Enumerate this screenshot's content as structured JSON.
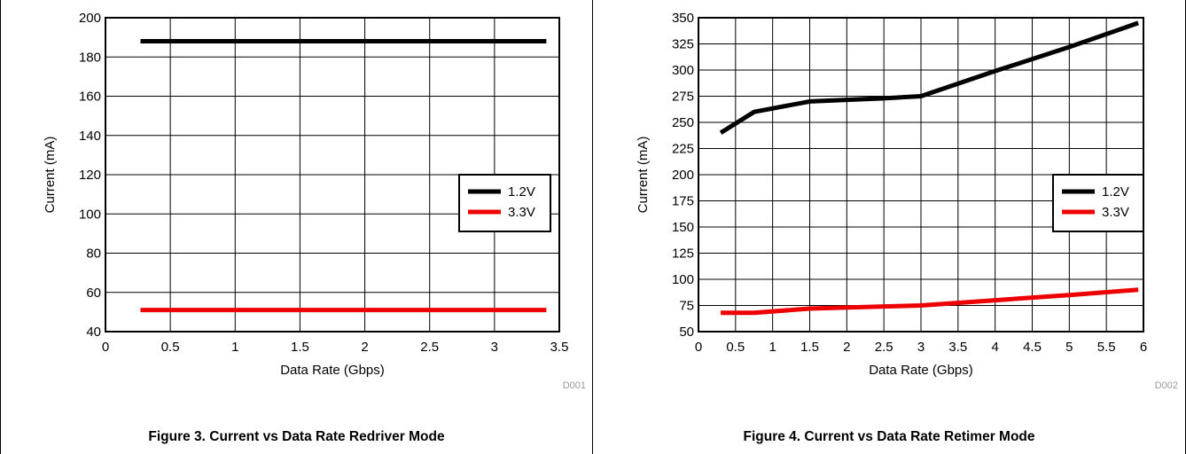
{
  "chart_data": [
    {
      "type": "line",
      "caption": "Figure 3. Current vs Data Rate Redriver Mode",
      "figure_code": "D001",
      "xlabel": "Data Rate (Gbps)",
      "ylabel": "Current (mA)",
      "xlim": [
        0,
        3.5
      ],
      "ylim": [
        40,
        200
      ],
      "xticks": [
        0,
        0.5,
        1,
        1.5,
        2,
        2.5,
        3,
        3.5
      ],
      "xtick_labels": [
        "0",
        "0.5",
        "1",
        "1.5",
        "2",
        "2.5",
        "3",
        "3.5"
      ],
      "yticks": [
        40,
        60,
        80,
        100,
        120,
        140,
        160,
        180,
        200
      ],
      "ytick_labels": [
        "40",
        "60",
        "80",
        "100",
        "120",
        "140",
        "160",
        "180",
        "200"
      ],
      "grid": true,
      "legend_position": "right",
      "series": [
        {
          "name": "1.2V",
          "color": "#000000",
          "x": [
            0.27,
            3.4
          ],
          "y": [
            188,
            188
          ]
        },
        {
          "name": "3.3V",
          "color": "#ee0000",
          "x": [
            0.27,
            3.4
          ],
          "y": [
            51,
            51
          ]
        }
      ]
    },
    {
      "type": "line",
      "caption": "Figure 4. Current vs Data Rate Retimer Mode",
      "figure_code": "D002",
      "xlabel": "Data Rate (Gbps)",
      "ylabel": "Current (mA)",
      "xlim": [
        0,
        6
      ],
      "ylim": [
        50,
        350
      ],
      "xticks": [
        0,
        0.5,
        1,
        1.5,
        2,
        2.5,
        3,
        3.5,
        4,
        4.5,
        5,
        5.5,
        6
      ],
      "xtick_labels": [
        "0",
        "0.5",
        "1",
        "1.5",
        "2",
        "2.5",
        "3",
        "3.5",
        "4",
        "4.5",
        "5",
        "5.5",
        "6"
      ],
      "yticks": [
        50,
        75,
        100,
        125,
        150,
        175,
        200,
        225,
        250,
        275,
        300,
        325,
        350
      ],
      "ytick_labels": [
        "50",
        "75",
        "100",
        "125",
        "150",
        "175",
        "200",
        "225",
        "250",
        "275",
        "300",
        "325",
        "350"
      ],
      "grid": true,
      "legend_position": "right",
      "series": [
        {
          "name": "1.2V",
          "color": "#000000",
          "x": [
            0.3,
            0.75,
            1.5,
            2.5,
            3,
            4,
            5,
            5.93
          ],
          "y": [
            240,
            260,
            270,
            273,
            275,
            299,
            322,
            345
          ]
        },
        {
          "name": "3.3V",
          "color": "#ee0000",
          "x": [
            0.3,
            0.75,
            1.5,
            2.5,
            3,
            4,
            5,
            5.93
          ],
          "y": [
            68,
            68,
            72,
            74,
            75,
            80,
            85,
            90
          ]
        }
      ]
    }
  ]
}
